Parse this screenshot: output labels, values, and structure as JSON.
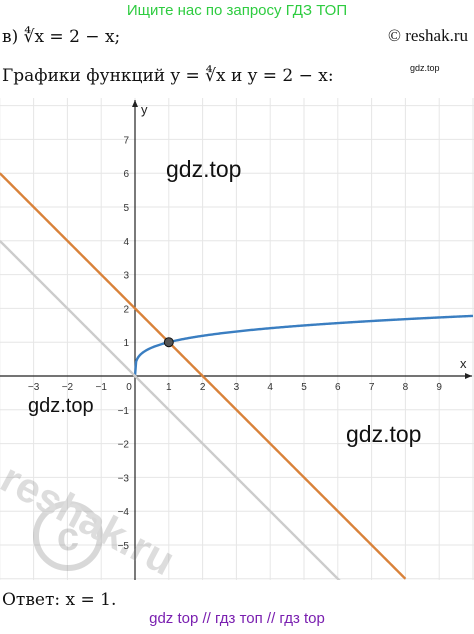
{
  "header": {
    "banner": "Ищите нас по запросу ГДЗ ТОП",
    "copyright": "© reshak.ru",
    "small_watermark": "gdz.top"
  },
  "problem": {
    "label": "в)",
    "equation": "∜x = 2 − x;"
  },
  "caption": "Графики функций y = ∜x и y = 2 − x:",
  "watermarks": [
    "gdz.top",
    "gdz.top",
    "gdz.top",
    "reshak.ru"
  ],
  "answer": "Ответ:  x = 1.",
  "footer": "gdz top  //  гдз топ  //  гдз top",
  "chart_data": {
    "type": "line",
    "xlabel": "x",
    "ylabel": "y",
    "xlim": [
      -4,
      10
    ],
    "ylim": [
      -6,
      8
    ],
    "x_ticks": [
      -3,
      -2,
      -1,
      0,
      1,
      2,
      3,
      4,
      5,
      6,
      7,
      8,
      9
    ],
    "y_ticks": [
      -5,
      -4,
      -3,
      -2,
      -1,
      1,
      2,
      3,
      4,
      5,
      6,
      7
    ],
    "grid": true,
    "series": [
      {
        "name": "",
        "formula": "y = x^(1/4)",
        "color": "#3a7ec1",
        "x_from": 0,
        "x_to": 10
      },
      {
        "name": "",
        "formula": "y = 2 - x",
        "color": "#d9823a",
        "x_from": -4,
        "x_to": 8
      },
      {
        "name": "",
        "formula": "y = -x",
        "color": "#cccccc",
        "x_from": -4,
        "x_to": 6.5
      }
    ],
    "points": [
      {
        "x": 1,
        "y": 1,
        "color": "#555555"
      }
    ]
  }
}
